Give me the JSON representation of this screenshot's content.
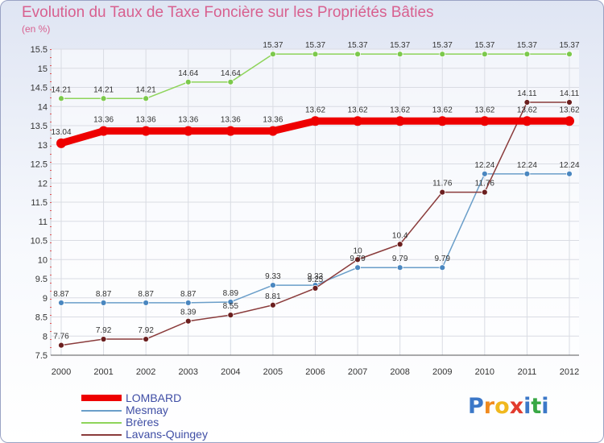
{
  "title": "Evolution du Taux de Taxe Foncière sur les Propriétés Bâties",
  "unit_label": "(en %)",
  "brand": {
    "letters": [
      "P",
      "r",
      "o",
      "x",
      "i",
      "t",
      "i"
    ],
    "colors": [
      "#3c78c8",
      "#f08a1e",
      "#f0b81e",
      "#e23b2e",
      "#3c78c8",
      "#39a845",
      "#3c78c8"
    ]
  },
  "chart_data": {
    "type": "line",
    "x": [
      "2000",
      "2001",
      "2002",
      "2003",
      "2004",
      "2005",
      "2006",
      "2007",
      "2008",
      "2009",
      "2010",
      "2011",
      "2012"
    ],
    "ylim": [
      7.5,
      15.5
    ],
    "yticks": [
      "7.5",
      "8",
      "8.5",
      "9",
      "9.5",
      "10",
      "10.5",
      "11",
      "11.5",
      "12",
      "12.5",
      "13",
      "13.5",
      "14",
      "14.5",
      "15",
      "15.5"
    ],
    "grid": true,
    "legend_position": "bottom-left",
    "series": [
      {
        "name": "LOMBARD",
        "color": "#ee0000",
        "marker": "#ee0000",
        "values": [
          13.04,
          13.36,
          13.36,
          13.36,
          13.36,
          13.36,
          13.62,
          13.62,
          13.62,
          13.62,
          13.62,
          13.62,
          13.62
        ],
        "labels": [
          "13.04",
          "13.36",
          "13.36",
          "13.36",
          "13.36",
          "13.36",
          "13.62",
          "13.62",
          "13.62",
          "13.62",
          "13.62",
          "13.62",
          "13.62"
        ]
      },
      {
        "name": "Mesmay",
        "color": "#6a9ec9",
        "marker": "#4a87c0",
        "values": [
          8.87,
          8.87,
          8.87,
          8.87,
          8.89,
          9.33,
          9.33,
          9.79,
          9.79,
          9.79,
          12.24,
          12.24,
          12.24
        ],
        "labels": [
          "8.87",
          "8.87",
          "8.87",
          "8.87",
          "8.89",
          "9.33",
          "9.33",
          "9.79",
          "9.79",
          "9.79",
          "12.24",
          "12.24",
          "12.24"
        ]
      },
      {
        "name": "Brères",
        "color": "#8ed45a",
        "marker": "#7cc94c",
        "values": [
          14.21,
          14.21,
          14.21,
          14.64,
          14.64,
          15.37,
          15.37,
          15.37,
          15.37,
          15.37,
          15.37,
          15.37,
          15.37
        ],
        "labels": [
          "14.21",
          "14.21",
          "14.21",
          "14.64",
          "14.64",
          "15.37",
          "15.37",
          "15.37",
          "15.37",
          "15.37",
          "15.37",
          "15.37",
          "15.37"
        ]
      },
      {
        "name": "Lavans-Quingey",
        "color": "#8a3b3b",
        "marker": "#6b1f1f",
        "values": [
          7.76,
          7.92,
          7.92,
          8.39,
          8.55,
          8.81,
          9.25,
          10,
          10.4,
          11.76,
          11.76,
          14.11,
          14.11
        ],
        "labels": [
          "7.76",
          "7.92",
          "7.92",
          "8.39",
          "8.55",
          "8.81",
          "9.25",
          "10",
          "10.4",
          "11.76",
          "11.76",
          "14.11",
          "14.11"
        ]
      }
    ]
  }
}
